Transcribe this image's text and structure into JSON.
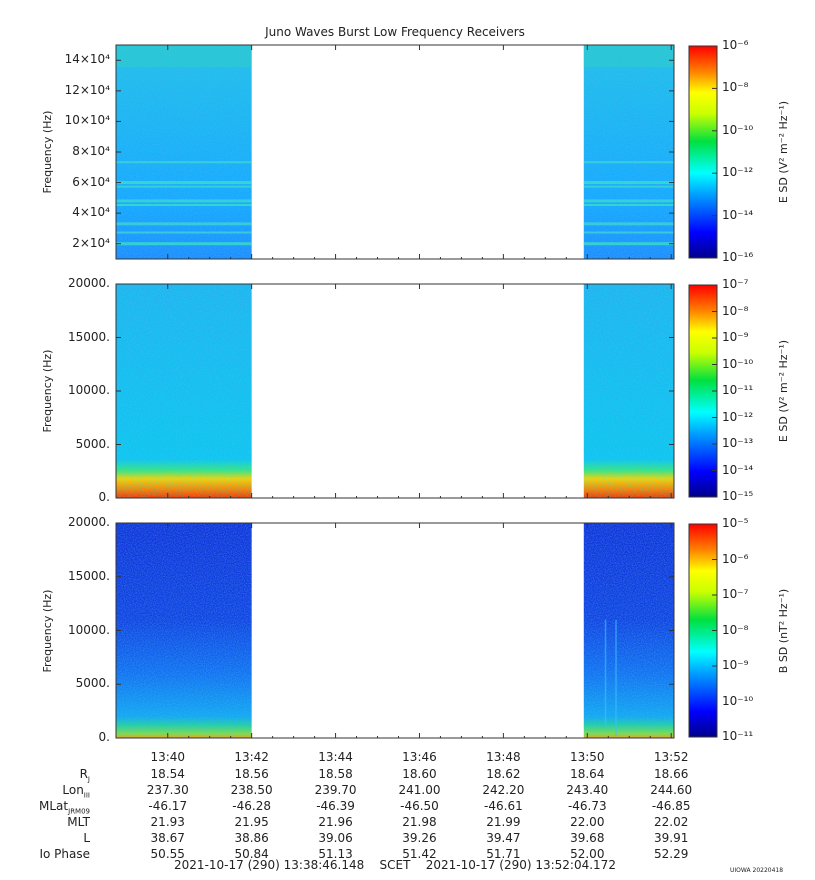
{
  "title": "Juno Waves Burst Low Frequency Receivers",
  "footer": {
    "time_range": "2021-10-17 (290) 13:38:46.148    SCET    2021-10-17 (290) 13:52:04.172",
    "stamp": "UIOWA 20220418"
  },
  "colors": {
    "spectro_low": "#0000c8",
    "spectro_mid": "#00c8ff",
    "spectro_high": "#ff2000",
    "gap": "#ffffff"
  },
  "panels": [
    {
      "ylabel": "Frequency (Hz)",
      "yticks": [
        "2×10⁴",
        "4×10⁴",
        "6×10⁴",
        "8×10⁴",
        "10×10⁴",
        "12×10⁴",
        "14×10⁴"
      ],
      "cbar_label": "E SD (V² m⁻² Hz⁻¹)",
      "cbar_ticks": [
        "10⁻⁶",
        "10⁻⁸",
        "10⁻¹⁰",
        "10⁻¹²",
        "10⁻¹⁴",
        "10⁻¹⁶"
      ]
    },
    {
      "ylabel": "Frequency (Hz)",
      "yticks": [
        "0.",
        "5000.",
        "10000.",
        "15000.",
        "20000."
      ],
      "cbar_label": "E SD (V² m⁻² Hz⁻¹)",
      "cbar_ticks": [
        "10⁻⁷",
        "10⁻⁸",
        "10⁻⁹",
        "10⁻¹⁰",
        "10⁻¹¹",
        "10⁻¹²",
        "10⁻¹³",
        "10⁻¹⁴",
        "10⁻¹⁵"
      ]
    },
    {
      "ylabel": "Frequency (Hz)",
      "yticks": [
        "0.",
        "5000.",
        "10000.",
        "15000.",
        "20000."
      ],
      "cbar_label": "B SD (nT² Hz⁻¹)",
      "cbar_ticks": [
        "10⁻⁵",
        "10⁻⁶",
        "10⁻⁷",
        "10⁻⁸",
        "10⁻⁹",
        "10⁻¹⁰",
        "10⁻¹¹"
      ]
    }
  ],
  "xticks": [
    "13:40",
    "13:42",
    "13:44",
    "13:46",
    "13:48",
    "13:50",
    "13:52"
  ],
  "ephemeris": [
    {
      "label": "R",
      "sub": "J",
      "values": [
        "18.54",
        "18.56",
        "18.58",
        "18.60",
        "18.62",
        "18.64",
        "18.66"
      ]
    },
    {
      "label": "Lon",
      "sub": "III",
      "values": [
        "237.30",
        "238.50",
        "239.70",
        "241.00",
        "242.20",
        "243.40",
        "244.60"
      ]
    },
    {
      "label": "MLat",
      "sub": "JRM09",
      "values": [
        "-46.17",
        "-46.28",
        "-46.39",
        "-46.50",
        "-46.61",
        "-46.73",
        "-46.85"
      ]
    },
    {
      "label": "MLT",
      "sub": "",
      "values": [
        "21.93",
        "21.95",
        "21.96",
        "21.98",
        "21.99",
        "22.00",
        "22.02"
      ]
    },
    {
      "label": "L",
      "sub": "",
      "values": [
        "38.67",
        "38.86",
        "39.06",
        "39.26",
        "39.47",
        "39.68",
        "39.91"
      ]
    },
    {
      "label": "Io Phase",
      "sub": "",
      "values": [
        "50.55",
        "50.84",
        "51.13",
        "51.42",
        "51.71",
        "52.00",
        "52.29"
      ]
    }
  ],
  "chart_data": [
    {
      "type": "heatmap",
      "title": "Juno Waves Burst Low Frequency Receivers",
      "ylabel": "Frequency (Hz)",
      "ylim": [
        10000,
        150000
      ],
      "yticks": [
        20000,
        40000,
        60000,
        80000,
        100000,
        120000,
        140000
      ],
      "x_range": [
        "13:38:46",
        "13:52:04"
      ],
      "data_intervals": [
        [
          "13:38:46",
          "13:42:00"
        ],
        [
          "13:49:55",
          "13:52:04"
        ]
      ],
      "gap": [
        "13:42:00",
        "13:49:55"
      ],
      "colorbar": {
        "label": "E SD (V2 m-2 Hz-1)",
        "scale": "log",
        "range": [
          1e-16,
          1e-06
        ]
      },
      "features": [
        {
          "description": "background intensity",
          "level": 1e-13
        },
        {
          "description": "narrowband emission lines between 20000 and 60000 Hz",
          "level": 1e-12
        }
      ]
    },
    {
      "type": "heatmap",
      "ylabel": "Frequency (Hz)",
      "ylim": [
        0,
        20000
      ],
      "yticks": [
        0,
        5000,
        10000,
        15000,
        20000
      ],
      "x_range": [
        "13:38:46",
        "13:52:04"
      ],
      "data_intervals": [
        [
          "13:38:46",
          "13:42:00"
        ],
        [
          "13:49:55",
          "13:52:04"
        ]
      ],
      "colorbar": {
        "label": "E SD (V2 m-2 Hz-1)",
        "scale": "log",
        "range": [
          1e-15,
          1e-07
        ]
      },
      "features": [
        {
          "description": "background",
          "level": 1e-13
        },
        {
          "description": "intense emission below ~3000 Hz",
          "level": 1e-09
        }
      ]
    },
    {
      "type": "heatmap",
      "ylabel": "Frequency (Hz)",
      "ylim": [
        0,
        20000
      ],
      "yticks": [
        0,
        5000,
        10000,
        15000,
        20000
      ],
      "x_range": [
        "13:38:46",
        "13:52:04"
      ],
      "data_intervals": [
        [
          "13:38:46",
          "13:42:00"
        ],
        [
          "13:49:55",
          "13:52:04"
        ]
      ],
      "colorbar": {
        "label": "B SD (nT2 Hz-1)",
        "scale": "log",
        "range": [
          1e-11,
          0.0001
        ]
      },
      "features": [
        {
          "description": "background",
          "level": 1e-10
        },
        {
          "description": "emission below ~1000 Hz",
          "level": 1e-08
        }
      ]
    }
  ]
}
